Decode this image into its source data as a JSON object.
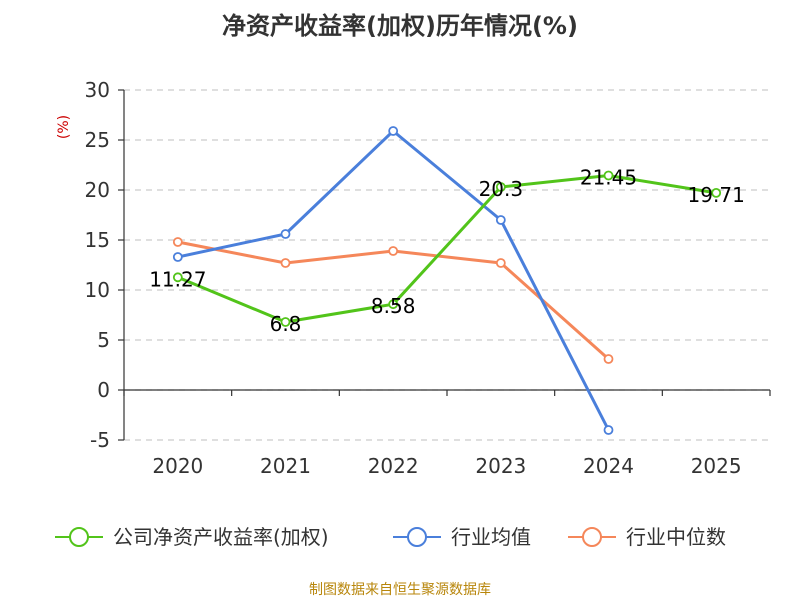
{
  "title": "净资产收益率(加权)历年情况(%)",
  "source": "制图数据来自恒生聚源数据库",
  "chart_data": {
    "type": "line",
    "title": "净资产收益率(加权)历年情况(%)",
    "ylabel": "(%)",
    "xlabel": "",
    "categories": [
      "2020",
      "2021",
      "2022",
      "2023",
      "2024",
      "2025"
    ],
    "ylim": [
      -5,
      30
    ],
    "yticks": [
      30,
      25,
      20,
      15,
      10,
      5,
      0,
      -5
    ],
    "grid": true,
    "legend_position": "bottom",
    "series": [
      {
        "name": "公司净资产收益率(加权)",
        "color": "#52c41a",
        "values": [
          11.27,
          6.8,
          8.58,
          20.3,
          21.45,
          19.71
        ],
        "labels": [
          "11.27",
          "6.8",
          "8.58",
          "20.3",
          "21.45",
          "19.71"
        ]
      },
      {
        "name": "行业均值",
        "color": "#4a7fdb",
        "values": [
          13.3,
          15.6,
          25.9,
          17.0,
          -4.0,
          null
        ]
      },
      {
        "name": "行业中位数",
        "color": "#f5875a",
        "values": [
          14.8,
          12.7,
          13.9,
          12.7,
          3.1,
          null
        ]
      }
    ]
  }
}
